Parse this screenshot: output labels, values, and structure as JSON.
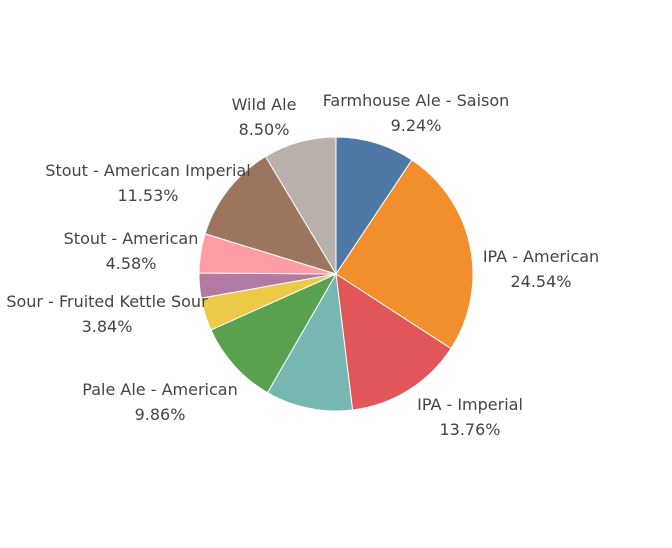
{
  "chart_data": {
    "type": "pie",
    "title": "",
    "slices": [
      {
        "label": "Farmhouse Ale - Saison",
        "pct_label": "9.24%",
        "value": 9.24,
        "color": "#4e79a7"
      },
      {
        "label": "IPA - American",
        "pct_label": "24.54%",
        "value": 24.54,
        "color": "#f28e2b"
      },
      {
        "label": "IPA - Imperial",
        "pct_label": "13.76%",
        "value": 13.76,
        "color": "#e15759"
      },
      {
        "label": "",
        "pct_label": "",
        "value": 10.15,
        "color": "#76b7b2"
      },
      {
        "label": "Pale Ale - American",
        "pct_label": "9.86%",
        "value": 9.86,
        "color": "#59a14f"
      },
      {
        "label": "Sour - Fruited Kettle Sour",
        "pct_label": "3.84%",
        "value": 3.84,
        "color": "#edc948"
      },
      {
        "label": "",
        "pct_label": "",
        "value": 2.9,
        "color": "#b07aa1"
      },
      {
        "label": "Stout - American",
        "pct_label": "4.58%",
        "value": 4.58,
        "color": "#ff9da7"
      },
      {
        "label": "Stout - American Imperial",
        "pct_label": "11.53%",
        "value": 11.53,
        "color": "#9c755f"
      },
      {
        "label": "Wild Ale",
        "pct_label": "8.50%",
        "value": 8.5,
        "color": "#bab0ac"
      }
    ]
  }
}
